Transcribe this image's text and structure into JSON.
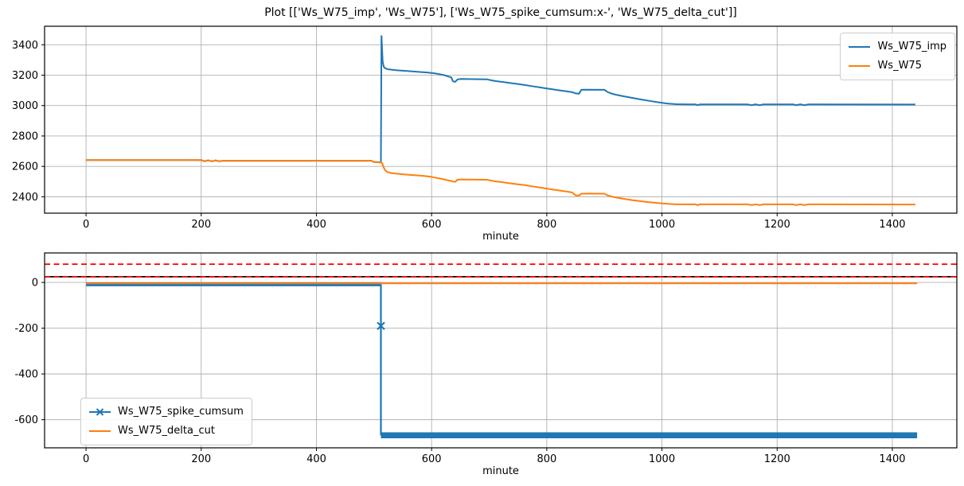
{
  "title": "Plot [['Ws_W75_imp', 'Ws_W75'], ['Ws_W75_spike_cumsum:x-', 'Ws_W75_delta_cut']]",
  "colors": {
    "blue": "#1f77b4",
    "orange": "#ff7f0e",
    "red": "#ff0000",
    "black": "#000000",
    "grid": "#b0b0b0",
    "spine": "#000000",
    "legend_border": "#cccccc"
  },
  "chart_data": [
    {
      "type": "line",
      "xlabel": "minute",
      "xlim": [
        -72,
        1512
      ],
      "ylim": [
        2292,
        3522
      ],
      "xticks": [
        0,
        200,
        400,
        600,
        800,
        1000,
        1200,
        1400
      ],
      "yticks": [
        2400,
        2600,
        2800,
        3000,
        3200,
        3400
      ],
      "grid": true,
      "legend_position": "upper right",
      "series": [
        {
          "name": "Ws_W75_imp",
          "color": "#1f77b4",
          "width": 2,
          "in_legend": true,
          "points": [
            [
              0,
              2641
            ],
            [
              200,
              2641
            ],
            [
              206,
              2634
            ],
            [
              212,
              2640
            ],
            [
              218,
              2633
            ],
            [
              225,
              2639
            ],
            [
              231,
              2634
            ],
            [
              238,
              2637
            ],
            [
              300,
              2637
            ],
            [
              495,
              2637
            ],
            [
              500,
              2629
            ],
            [
              510,
              2627
            ],
            [
              512,
              2627
            ],
            [
              513,
              3462
            ],
            [
              515,
              3290
            ],
            [
              517,
              3255
            ],
            [
              520,
              3244
            ],
            [
              526,
              3238
            ],
            [
              538,
              3233
            ],
            [
              552,
              3229
            ],
            [
              566,
              3225
            ],
            [
              580,
              3221
            ],
            [
              594,
              3217
            ],
            [
              606,
              3212
            ],
            [
              614,
              3206
            ],
            [
              622,
              3200
            ],
            [
              628,
              3193
            ],
            [
              634,
              3186
            ],
            [
              637,
              3160
            ],
            [
              641,
              3156
            ],
            [
              645,
              3172
            ],
            [
              651,
              3175
            ],
            [
              696,
              3173
            ],
            [
              704,
              3166
            ],
            [
              712,
              3161
            ],
            [
              720,
              3157
            ],
            [
              728,
              3153
            ],
            [
              738,
              3148
            ],
            [
              750,
              3142
            ],
            [
              762,
              3135
            ],
            [
              774,
              3128
            ],
            [
              786,
              3121
            ],
            [
              798,
              3114
            ],
            [
              810,
              3107
            ],
            [
              822,
              3100
            ],
            [
              834,
              3094
            ],
            [
              844,
              3088
            ],
            [
              850,
              3080
            ],
            [
              856,
              3078
            ],
            [
              860,
              3104
            ],
            [
              866,
              3105
            ],
            [
              900,
              3104
            ],
            [
              906,
              3088
            ],
            [
              914,
              3077
            ],
            [
              922,
              3070
            ],
            [
              934,
              3061
            ],
            [
              948,
              3051
            ],
            [
              962,
              3041
            ],
            [
              978,
              3031
            ],
            [
              995,
              3021
            ],
            [
              1010,
              3013
            ],
            [
              1025,
              3009
            ],
            [
              1045,
              3008
            ],
            [
              1058,
              3008
            ],
            [
              1062,
              3003
            ],
            [
              1066,
              3008
            ],
            [
              1148,
              3008
            ],
            [
              1156,
              3003
            ],
            [
              1162,
              3008
            ],
            [
              1170,
              3003
            ],
            [
              1176,
              3008
            ],
            [
              1228,
              3008
            ],
            [
              1233,
              3003
            ],
            [
              1240,
              3008
            ],
            [
              1248,
              3003
            ],
            [
              1254,
              3008
            ],
            [
              1440,
              3007
            ]
          ]
        },
        {
          "name": "Ws_W75",
          "color": "#ff7f0e",
          "width": 2,
          "in_legend": true,
          "points": [
            [
              0,
              2641
            ],
            [
              200,
              2641
            ],
            [
              206,
              2634
            ],
            [
              212,
              2640
            ],
            [
              218,
              2633
            ],
            [
              225,
              2639
            ],
            [
              231,
              2634
            ],
            [
              238,
              2637
            ],
            [
              300,
              2637
            ],
            [
              495,
              2637
            ],
            [
              500,
              2629
            ],
            [
              512,
              2626
            ],
            [
              514,
              2622
            ],
            [
              516,
              2600
            ],
            [
              519,
              2576
            ],
            [
              523,
              2563
            ],
            [
              530,
              2556
            ],
            [
              542,
              2551
            ],
            [
              556,
              2546
            ],
            [
              570,
              2542
            ],
            [
              584,
              2538
            ],
            [
              598,
              2532
            ],
            [
              606,
              2526
            ],
            [
              614,
              2520
            ],
            [
              622,
              2514
            ],
            [
              628,
              2508
            ],
            [
              634,
              2504
            ],
            [
              637,
              2500
            ],
            [
              641,
              2498
            ],
            [
              645,
              2512
            ],
            [
              651,
              2514
            ],
            [
              696,
              2512
            ],
            [
              704,
              2506
            ],
            [
              712,
              2501
            ],
            [
              720,
              2497
            ],
            [
              728,
              2493
            ],
            [
              738,
              2488
            ],
            [
              750,
              2482
            ],
            [
              762,
              2476
            ],
            [
              774,
              2469
            ],
            [
              786,
              2462
            ],
            [
              798,
              2455
            ],
            [
              810,
              2448
            ],
            [
              822,
              2441
            ],
            [
              834,
              2435
            ],
            [
              844,
              2428
            ],
            [
              850,
              2410
            ],
            [
              856,
              2408
            ],
            [
              860,
              2420
            ],
            [
              866,
              2421
            ],
            [
              900,
              2420
            ],
            [
              906,
              2408
            ],
            [
              914,
              2400
            ],
            [
              922,
              2394
            ],
            [
              934,
              2386
            ],
            [
              948,
              2378
            ],
            [
              962,
              2371
            ],
            [
              978,
              2364
            ],
            [
              995,
              2358
            ],
            [
              1010,
              2353
            ],
            [
              1025,
              2350
            ],
            [
              1045,
              2350
            ],
            [
              1058,
              2350
            ],
            [
              1062,
              2345
            ],
            [
              1066,
              2350
            ],
            [
              1148,
              2350
            ],
            [
              1156,
              2345
            ],
            [
              1162,
              2350
            ],
            [
              1170,
              2345
            ],
            [
              1176,
              2350
            ],
            [
              1228,
              2350
            ],
            [
              1233,
              2345
            ],
            [
              1240,
              2350
            ],
            [
              1248,
              2345
            ],
            [
              1254,
              2350
            ],
            [
              1440,
              2349
            ]
          ]
        }
      ]
    },
    {
      "type": "line",
      "xlabel": "minute",
      "xlim": [
        -72,
        1512
      ],
      "ylim": [
        -723,
        129
      ],
      "xticks": [
        0,
        200,
        400,
        600,
        800,
        1000,
        1200,
        1400
      ],
      "yticks": [
        0,
        -200,
        -400,
        -600
      ],
      "grid": true,
      "legend_position": "lower left",
      "series": [
        {
          "name": "Ws_W75_spike_cumsum",
          "color": "#1f77b4",
          "marker": "x",
          "in_legend": true,
          "segments": [
            {
              "width": 5,
              "points": [
                [
                  0,
                  -8
                ],
                [
                  512,
                  -8
                ]
              ]
            },
            {
              "width": 2.2,
              "points": [
                [
                  512,
                  -8
                ],
                [
                  512,
                  -190
                ],
                [
                  512,
                  -668
                ]
              ]
            },
            {
              "width": 7.5,
              "points": [
                [
                  512,
                  -668
                ],
                [
                  1443,
                  -668
                ]
              ]
            }
          ],
          "marker_points": [
            [
              512,
              -190
            ]
          ]
        },
        {
          "name": "Ws_W75_delta_cut",
          "color": "#ff7f0e",
          "width": 2,
          "in_legend": true,
          "points": [
            [
              0,
              -4
            ],
            [
              1443,
              -4
            ]
          ]
        },
        {
          "name": "spike_threshold_upper",
          "color": "#ff0000",
          "dash": "7,4.5",
          "width": 1.8,
          "in_legend": false,
          "axhline": true,
          "y": 80
        },
        {
          "name": "threshold_black_line",
          "color": "#000000",
          "width": 1.8,
          "in_legend": false,
          "axhline": true,
          "y": 25
        },
        {
          "name": "spike_threshold_lower",
          "color": "#ff0000",
          "dash": "7,4.5",
          "width": 1.8,
          "in_legend": false,
          "axhline": true,
          "y": 25
        }
      ]
    }
  ]
}
